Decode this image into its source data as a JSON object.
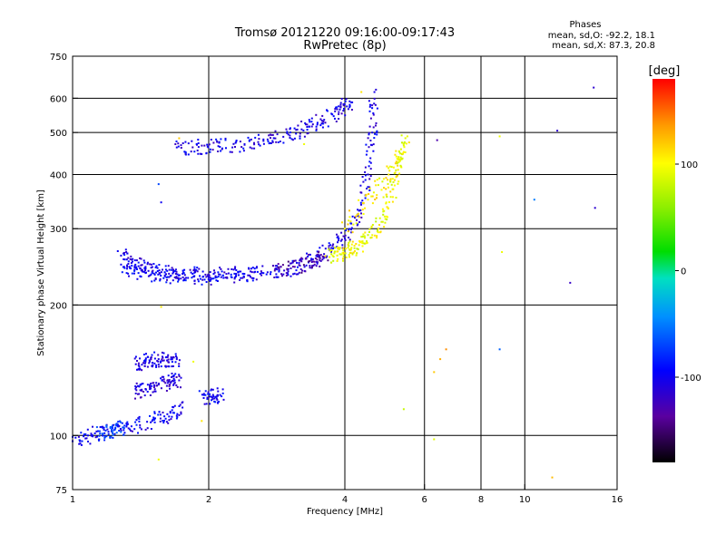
{
  "header": {
    "title": "Tromsø 20121220 09:16:00-09:17:43",
    "subtitle": "RwPretec (8p)"
  },
  "stats": {
    "heading": "Phases",
    "line_o": "mean, sd,O: -92.2, 18.1",
    "line_x": "mean, sd,X:  87.3, 20.8"
  },
  "colorbar": {
    "label": "[deg]",
    "ticks": [
      {
        "value": 100,
        "label": "100"
      },
      {
        "value": 0,
        "label": "0"
      },
      {
        "value": -100,
        "label": "-100"
      }
    ],
    "range": [
      -180,
      180
    ]
  },
  "chart_data": {
    "type": "scatter",
    "title": "Tromsø 20121220 09:16:00-09:17:43",
    "subtitle": "RwPretec (8p)",
    "xlabel": "Frequency [MHz]",
    "ylabel": "Stationary phase Virtual Height [km]",
    "x_scale": "log",
    "y_scale": "log",
    "xlim": [
      1,
      16
    ],
    "ylim": [
      75,
      750
    ],
    "x_ticks": [
      {
        "value": 1,
        "label": "1"
      },
      {
        "value": 2,
        "label": "2"
      },
      {
        "value": 4,
        "label": "4"
      },
      {
        "value": 6,
        "label": "6"
      },
      {
        "value": 8,
        "label": "8"
      },
      {
        "value": 10,
        "label": "10"
      },
      {
        "value": 16,
        "label": "16"
      }
    ],
    "y_ticks": [
      {
        "value": 75,
        "label": "75"
      },
      {
        "value": 100,
        "label": "100"
      },
      {
        "value": 200,
        "label": "200"
      },
      {
        "value": 300,
        "label": "300"
      },
      {
        "value": 400,
        "label": "400"
      },
      {
        "value": 500,
        "label": "500"
      },
      {
        "value": 600,
        "label": "600"
      },
      {
        "value": 750,
        "label": "750"
      }
    ],
    "x_grid": [
      2,
      4,
      6,
      8,
      10
    ],
    "y_grid": [
      100,
      200,
      300,
      400,
      500,
      600
    ],
    "grid": true,
    "color_scale": "phase [deg], -180 to 180, rainbow",
    "series": [
      {
        "traces": [
          {
            "points": [
              [
                1.0,
                97
              ],
              [
                1.1,
                100
              ],
              [
                1.2,
                102
              ],
              [
                1.35,
                105
              ],
              [
                1.5,
                108
              ],
              [
                1.62,
                112
              ],
              [
                1.75,
                116
              ]
            ],
            "phase": -100
          },
          {
            "points": [
              [
                1.38,
                125
              ],
              [
                1.45,
                128
              ],
              [
                1.55,
                131
              ],
              [
                1.65,
                133
              ],
              [
                1.72,
                134
              ]
            ],
            "phase": -110
          },
          {
            "points": [
              [
                1.38,
                146
              ],
              [
                1.45,
                148
              ],
              [
                1.55,
                150
              ],
              [
                1.62,
                149
              ],
              [
                1.7,
                150
              ]
            ],
            "phase": -105
          },
          {
            "points": [
              [
                1.15,
                101
              ],
              [
                1.22,
                103
              ],
              [
                1.3,
                104
              ]
            ],
            "phase": -70
          },
          {
            "points": [
              [
                1.95,
                122
              ],
              [
                2.05,
                123
              ],
              [
                2.12,
                124
              ]
            ],
            "phase": -100
          },
          {
            "points": [
              [
                1.28,
                260
              ],
              [
                1.35,
                250
              ],
              [
                1.45,
                245
              ],
              [
                1.6,
                238
              ],
              [
                1.75,
                236
              ],
              [
                2.0,
                235
              ],
              [
                2.3,
                236
              ],
              [
                2.7,
                238
              ],
              [
                3.0,
                242
              ],
              [
                3.4,
                255
              ],
              [
                3.7,
                268
              ],
              [
                4.0,
                285
              ],
              [
                4.3,
                330
              ],
              [
                4.5,
                400
              ],
              [
                4.6,
                500
              ],
              [
                4.65,
                620
              ]
            ],
            "phase": -105
          },
          {
            "points": [
              [
                1.3,
                245
              ],
              [
                1.45,
                237
              ],
              [
                1.6,
                233
              ],
              [
                1.8,
                231
              ],
              [
                2.0,
                232
              ],
              [
                2.3,
                234
              ],
              [
                2.6,
                236
              ]
            ],
            "phase": -100
          },
          {
            "points": [
              [
                2.8,
                240
              ],
              [
                3.1,
                245
              ],
              [
                3.4,
                252
              ],
              [
                3.6,
                258
              ]
            ],
            "phase": -130
          },
          {
            "points": [
              [
                1.7,
                462
              ],
              [
                1.9,
                463
              ],
              [
                2.1,
                465
              ],
              [
                2.4,
                470
              ],
              [
                2.7,
                482
              ],
              [
                3.0,
                495
              ],
              [
                3.3,
                515
              ],
              [
                3.6,
                535
              ],
              [
                3.9,
                565
              ],
              [
                4.1,
                590
              ]
            ],
            "phase": -105
          },
          {
            "points": [
              [
                3.7,
                258
              ],
              [
                3.9,
                262
              ],
              [
                4.1,
                268
              ],
              [
                4.3,
                275
              ],
              [
                4.6,
                290
              ],
              [
                4.9,
                320
              ],
              [
                5.1,
                370
              ],
              [
                5.3,
                430
              ],
              [
                5.5,
                490
              ]
            ],
            "phase": 95
          },
          {
            "points": [
              [
                4.0,
                300
              ],
              [
                4.5,
                350
              ],
              [
                5.0,
                400
              ],
              [
                5.4,
                450
              ]
            ],
            "phase": 105
          }
        ]
      },
      {
        "name": "scattered",
        "points": [
          [
            1.55,
            88,
            95
          ],
          [
            1.57,
            198,
            110
          ],
          [
            1.55,
            380,
            -70
          ],
          [
            1.57,
            345,
            -100
          ],
          [
            1.72,
            485,
            120
          ],
          [
            1.85,
            148,
            95
          ],
          [
            1.93,
            108,
            110
          ],
          [
            3.25,
            470,
            95
          ],
          [
            4.35,
            620,
            110
          ],
          [
            5.4,
            115,
            80
          ],
          [
            6.3,
            140,
            120
          ],
          [
            6.5,
            150,
            130
          ],
          [
            6.7,
            158,
            140
          ],
          [
            6.3,
            98,
            90
          ],
          [
            6.4,
            480,
            -130
          ],
          [
            8.8,
            490,
            95
          ],
          [
            8.9,
            265,
            95
          ],
          [
            8.8,
            158,
            -60
          ],
          [
            10.5,
            350,
            -50
          ],
          [
            11.5,
            80,
            125
          ],
          [
            11.8,
            505,
            -115
          ],
          [
            12.6,
            225,
            -120
          ],
          [
            14.2,
            635,
            -115
          ],
          [
            14.3,
            335,
            -115
          ]
        ]
      }
    ]
  }
}
